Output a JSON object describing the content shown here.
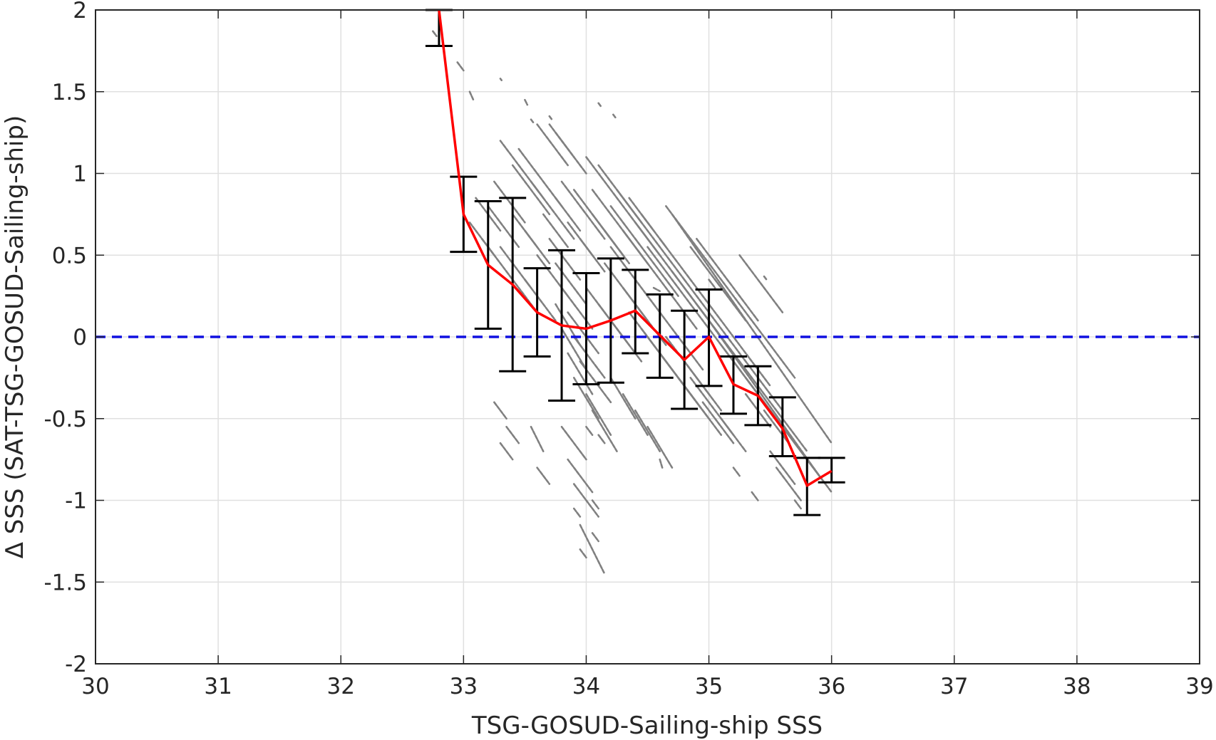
{
  "chart_data": {
    "type": "scatter",
    "xlabel": "TSG-GOSUD-Sailing-ship SSS",
    "ylabel": "Δ SSS (SAT-TSG-GOSUD-Sailing-ship)",
    "xlim": [
      30,
      39
    ],
    "ylim": [
      -2,
      2
    ],
    "xticks": [
      "30",
      "31",
      "32",
      "33",
      "34",
      "35",
      "36",
      "37",
      "38",
      "39"
    ],
    "yticks": [
      "2",
      "1.5",
      "1",
      "0.5",
      "0",
      "-0.5",
      "-1",
      "-1.5",
      "-2"
    ],
    "grid": true,
    "zero_line": {
      "y": 0,
      "style": "dashed",
      "color": "#1010e0"
    },
    "colors": {
      "scatter": "#808080",
      "mean_line": "#ff0000",
      "error_bars": "#000000",
      "grid": "#e0e0e0",
      "axes": "#262626"
    },
    "binned_mean": {
      "x": [
        32.8,
        33.0,
        33.2,
        33.4,
        33.6,
        33.8,
        34.0,
        34.2,
        34.4,
        34.6,
        34.8,
        35.0,
        35.2,
        35.4,
        35.6,
        35.8,
        36.0
      ],
      "mean": [
        2.0,
        0.75,
        0.44,
        0.32,
        0.15,
        0.07,
        0.05,
        0.1,
        0.16,
        0.01,
        -0.14,
        0.0,
        -0.29,
        -0.36,
        -0.56,
        -0.91,
        -0.82
      ],
      "upper": [
        2.0,
        0.98,
        0.83,
        0.85,
        0.42,
        0.53,
        0.39,
        0.48,
        0.41,
        0.26,
        0.16,
        0.29,
        -0.12,
        -0.18,
        -0.37,
        -0.74,
        -0.74
      ],
      "lower": [
        1.78,
        0.52,
        0.05,
        -0.21,
        -0.12,
        -0.39,
        -0.29,
        -0.28,
        -0.1,
        -0.25,
        -0.44,
        -0.3,
        -0.47,
        -0.54,
        -0.73,
        -1.09,
        -0.89
      ]
    },
    "scatter_streaks": [
      [
        32.75,
        1.87,
        32.78,
        1.84
      ],
      [
        32.95,
        1.68,
        33.0,
        1.63
      ],
      [
        33.3,
        1.58,
        33.31,
        1.57
      ],
      [
        33.05,
        1.5,
        33.08,
        1.45
      ],
      [
        33.5,
        1.45,
        33.52,
        1.42
      ],
      [
        33.55,
        1.33,
        33.57,
        1.31
      ],
      [
        33.7,
        1.35,
        33.72,
        1.33
      ],
      [
        34.1,
        1.43,
        34.12,
        1.41
      ],
      [
        34.22,
        1.36,
        34.24,
        1.34
      ],
      [
        33.6,
        1.3,
        33.85,
        1.05
      ],
      [
        33.7,
        1.3,
        33.9,
        1.1
      ],
      [
        33.75,
        1.25,
        34.0,
        1.0
      ],
      [
        33.3,
        1.2,
        33.65,
        0.85
      ],
      [
        33.4,
        1.05,
        33.7,
        0.75
      ],
      [
        33.45,
        1.15,
        33.8,
        0.8
      ],
      [
        33.55,
        0.95,
        33.9,
        0.6
      ],
      [
        33.8,
        0.95,
        34.15,
        0.6
      ],
      [
        33.9,
        0.9,
        34.3,
        0.5
      ],
      [
        34.0,
        1.1,
        34.6,
        0.5
      ],
      [
        34.1,
        1.05,
        34.8,
        0.35
      ],
      [
        34.05,
        0.9,
        34.5,
        0.45
      ],
      [
        34.2,
        0.8,
        34.75,
        0.25
      ],
      [
        34.3,
        0.65,
        34.9,
        0.05
      ],
      [
        34.4,
        0.7,
        35.1,
        0.0
      ],
      [
        34.5,
        0.55,
        35.2,
        -0.15
      ],
      [
        34.6,
        0.6,
        35.5,
        -0.3
      ],
      [
        34.65,
        0.8,
        35.7,
        -0.25
      ],
      [
        34.7,
        0.75,
        36.0,
        -0.65
      ],
      [
        34.8,
        0.35,
        35.6,
        -0.45
      ],
      [
        34.9,
        0.2,
        35.8,
        -0.7
      ],
      [
        35.0,
        0.1,
        35.9,
        -0.85
      ],
      [
        35.1,
        -0.05,
        36.0,
        -0.95
      ],
      [
        35.2,
        -0.15,
        35.95,
        -0.9
      ],
      [
        35.3,
        -0.25,
        35.85,
        -0.8
      ],
      [
        33.25,
        0.95,
        33.5,
        0.7
      ],
      [
        33.2,
        0.8,
        33.45,
        0.55
      ],
      [
        33.1,
        0.85,
        33.3,
        0.65
      ],
      [
        33.05,
        0.7,
        33.25,
        0.5
      ],
      [
        33.15,
        0.6,
        33.35,
        0.4
      ],
      [
        33.3,
        0.55,
        33.55,
        0.3
      ],
      [
        33.35,
        0.4,
        33.6,
        0.15
      ],
      [
        33.5,
        0.35,
        33.75,
        0.1
      ],
      [
        33.6,
        0.5,
        33.85,
        0.25
      ],
      [
        33.7,
        0.6,
        33.95,
        0.35
      ],
      [
        33.75,
        0.45,
        34.0,
        0.2
      ],
      [
        33.8,
        0.3,
        34.05,
        0.05
      ],
      [
        33.85,
        0.15,
        34.1,
        -0.1
      ],
      [
        33.9,
        0.0,
        34.15,
        -0.25
      ],
      [
        33.95,
        -0.15,
        34.2,
        -0.4
      ],
      [
        34.0,
        0.3,
        34.35,
        -0.05
      ],
      [
        34.1,
        0.2,
        34.45,
        -0.15
      ],
      [
        34.15,
        0.45,
        34.5,
        0.1
      ],
      [
        34.2,
        0.55,
        34.55,
        0.2
      ],
      [
        34.3,
        0.3,
        34.65,
        -0.05
      ],
      [
        34.35,
        0.15,
        34.7,
        -0.2
      ],
      [
        34.45,
        0.05,
        34.8,
        -0.3
      ],
      [
        34.55,
        0.2,
        34.95,
        -0.2
      ],
      [
        34.65,
        0.0,
        35.0,
        -0.35
      ],
      [
        34.75,
        -0.1,
        35.1,
        -0.45
      ],
      [
        34.85,
        -0.25,
        35.2,
        -0.6
      ],
      [
        33.8,
        -0.55,
        34.0,
        -0.75
      ],
      [
        33.85,
        -0.75,
        34.05,
        -0.95
      ],
      [
        33.9,
        -0.9,
        34.1,
        -1.1
      ],
      [
        33.95,
        -1.15,
        34.15,
        -1.45
      ],
      [
        34.05,
        -1.2,
        34.1,
        -1.25
      ],
      [
        33.95,
        -1.3,
        34.0,
        -1.35
      ],
      [
        33.25,
        -0.4,
        33.35,
        -0.5
      ],
      [
        33.35,
        -0.55,
        33.45,
        -0.65
      ],
      [
        33.3,
        -0.65,
        33.4,
        -0.75
      ],
      [
        33.55,
        -0.55,
        33.65,
        -0.7
      ],
      [
        33.6,
        -0.8,
        33.7,
        -0.9
      ],
      [
        33.9,
        -1.05,
        33.95,
        -1.1
      ],
      [
        34.05,
        -1.0,
        34.1,
        -1.05
      ],
      [
        34.0,
        -0.55,
        34.05,
        -0.6
      ],
      [
        34.1,
        -0.6,
        34.15,
        -0.65
      ],
      [
        35.2,
        -0.8,
        35.25,
        -0.85
      ],
      [
        35.35,
        -0.95,
        35.4,
        -1.0
      ],
      [
        35.7,
        -1.0,
        35.75,
        -1.05
      ],
      [
        34.55,
        0.3,
        34.6,
        0.28
      ],
      [
        34.6,
        -0.75,
        34.62,
        -0.8
      ],
      [
        35.0,
        0.35,
        35.05,
        0.3
      ],
      [
        35.45,
        0.37,
        35.47,
        0.35
      ],
      [
        34.7,
        0.4,
        35.0,
        0.1
      ],
      [
        34.85,
        0.55,
        35.3,
        0.1
      ],
      [
        34.9,
        0.6,
        35.4,
        0.1
      ],
      [
        35.25,
        0.5,
        35.6,
        0.15
      ],
      [
        33.4,
        0.75,
        33.6,
        0.55
      ],
      [
        33.5,
        0.65,
        33.7,
        0.45
      ],
      [
        33.65,
        0.75,
        33.85,
        0.55
      ],
      [
        33.75,
        0.85,
        33.95,
        0.65
      ],
      [
        33.85,
        0.7,
        34.05,
        0.5
      ],
      [
        33.95,
        0.6,
        34.15,
        0.4
      ],
      [
        34.05,
        0.75,
        34.25,
        0.55
      ],
      [
        34.15,
        0.65,
        34.35,
        0.45
      ],
      [
        34.25,
        0.9,
        34.45,
        0.7
      ],
      [
        34.35,
        0.85,
        34.55,
        0.65
      ],
      [
        34.45,
        0.75,
        34.65,
        0.55
      ],
      [
        33.75,
        0.2,
        33.95,
        -0.05
      ],
      [
        33.8,
        0.05,
        34.0,
        -0.2
      ],
      [
        33.85,
        -0.1,
        34.05,
        -0.35
      ],
      [
        33.9,
        -0.25,
        34.1,
        -0.5
      ],
      [
        34.0,
        -0.35,
        34.2,
        -0.6
      ],
      [
        34.05,
        -0.45,
        34.25,
        -0.7
      ],
      [
        34.2,
        -0.25,
        34.4,
        -0.5
      ],
      [
        34.3,
        -0.35,
        34.5,
        -0.6
      ],
      [
        34.4,
        -0.45,
        34.6,
        -0.7
      ],
      [
        34.5,
        -0.55,
        34.7,
        -0.8
      ],
      [
        34.6,
        -0.1,
        34.9,
        -0.4
      ],
      [
        34.7,
        -0.2,
        35.0,
        -0.5
      ],
      [
        34.8,
        -0.3,
        35.1,
        -0.6
      ],
      [
        34.95,
        -0.4,
        35.2,
        -0.65
      ],
      [
        35.1,
        -0.5,
        35.3,
        -0.7
      ],
      [
        35.3,
        -0.35,
        35.5,
        -0.55
      ],
      [
        35.45,
        -0.45,
        35.65,
        -0.65
      ],
      [
        35.6,
        -0.55,
        35.8,
        -0.75
      ],
      [
        35.7,
        -0.65,
        35.9,
        -0.85
      ],
      [
        35.5,
        -0.7,
        35.7,
        -0.9
      ],
      [
        35.55,
        -0.8,
        35.75,
        -1.0
      ]
    ]
  }
}
